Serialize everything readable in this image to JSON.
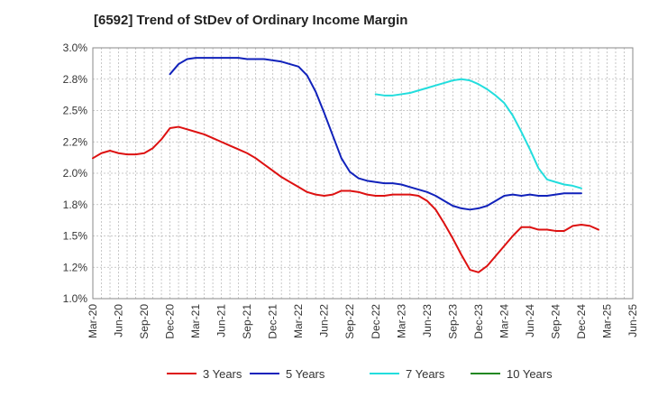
{
  "chart_data": {
    "type": "line",
    "title": "[6592]  Trend of StDev of Ordinary Income Margin",
    "xlabel": "",
    "ylabel": "",
    "x_ticks": [
      "Mar-20",
      "Jun-20",
      "Sep-20",
      "Dec-20",
      "Mar-21",
      "Jun-21",
      "Sep-21",
      "Dec-21",
      "Mar-22",
      "Jun-22",
      "Sep-22",
      "Dec-22",
      "Mar-23",
      "Jun-23",
      "Sep-23",
      "Dec-23",
      "Mar-24",
      "Jun-24",
      "Sep-24",
      "Dec-24",
      "Mar-25",
      "Jun-25"
    ],
    "y_ticks": [
      "1.0%",
      "1.2%",
      "1.5%",
      "1.8%",
      "2.0%",
      "2.2%",
      "2.5%",
      "2.8%",
      "3.0%"
    ],
    "ylim": [
      1.0,
      3.0
    ],
    "grid": true,
    "legend_position": "bottom",
    "series": [
      {
        "name": "3 Years",
        "color": "#dd1111",
        "start": "Mar-20",
        "values": [
          2.12,
          2.16,
          2.18,
          2.16,
          2.15,
          2.15,
          2.16,
          2.2,
          2.27,
          2.36,
          2.37,
          2.35,
          2.33,
          2.31,
          2.28,
          2.25,
          2.22,
          2.19,
          2.16,
          2.12,
          2.07,
          2.02,
          1.97,
          1.93,
          1.89,
          1.85,
          1.83,
          1.82,
          1.83,
          1.86,
          1.86,
          1.85,
          1.83,
          1.82,
          1.82,
          1.83,
          1.83,
          1.83,
          1.82,
          1.78,
          1.71,
          1.6,
          1.48,
          1.35,
          1.23,
          1.21,
          1.26,
          1.34,
          1.42,
          1.5,
          1.57,
          1.57,
          1.55,
          1.55,
          1.54,
          1.54,
          1.58,
          1.59,
          1.58,
          1.55
        ]
      },
      {
        "name": "5 Years",
        "color": "#1122bb",
        "start": "Dec-20",
        "values": [
          2.79,
          2.87,
          2.91,
          2.92,
          2.92,
          2.92,
          2.92,
          2.92,
          2.92,
          2.91,
          2.91,
          2.91,
          2.9,
          2.89,
          2.87,
          2.85,
          2.78,
          2.65,
          2.48,
          2.3,
          2.12,
          2.01,
          1.96,
          1.94,
          1.93,
          1.92,
          1.92,
          1.91,
          1.89,
          1.87,
          1.85,
          1.82,
          1.78,
          1.74,
          1.72,
          1.71,
          1.72,
          1.74,
          1.78,
          1.82,
          1.83,
          1.82,
          1.83,
          1.82,
          1.82,
          1.83,
          1.84,
          1.84,
          1.84
        ]
      },
      {
        "name": "7 Years",
        "color": "#22dddd",
        "start": "Dec-22",
        "values": [
          2.63,
          2.62,
          2.62,
          2.63,
          2.64,
          2.66,
          2.68,
          2.7,
          2.72,
          2.74,
          2.75,
          2.74,
          2.71,
          2.67,
          2.62,
          2.56,
          2.46,
          2.33,
          2.19,
          2.04,
          1.95,
          1.93,
          1.91,
          1.9,
          1.88
        ]
      },
      {
        "name": "10 Years",
        "color": "#228822",
        "start": "",
        "values": []
      }
    ]
  }
}
